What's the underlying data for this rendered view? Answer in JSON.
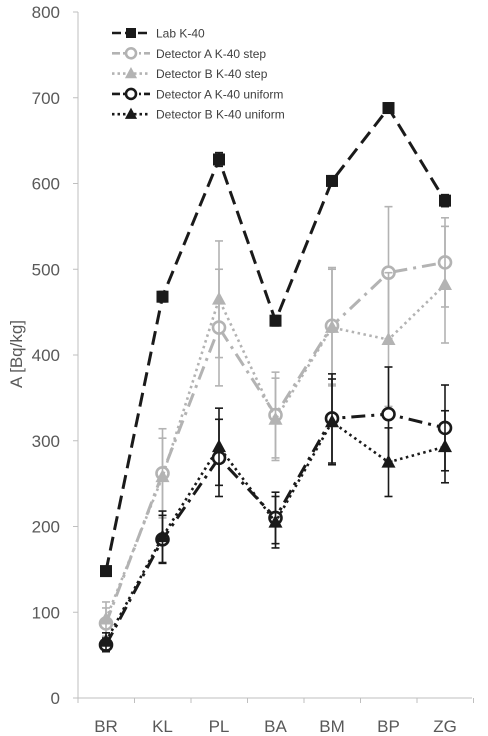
{
  "chart_data": {
    "type": "line",
    "title": "",
    "xlabel": "",
    "ylabel": "A  [Bq/kg]",
    "ylim": [
      0,
      800
    ],
    "yticks": [
      0,
      100,
      200,
      300,
      400,
      500,
      600,
      700,
      800
    ],
    "grid": false,
    "legend_position": "top-left",
    "categories": [
      "BR",
      "KL",
      "PL",
      "BA",
      "BM",
      "BP",
      "ZG"
    ],
    "series": [
      {
        "name": "Lab K-40",
        "values": [
          148,
          468,
          628,
          440,
          603,
          688,
          580
        ],
        "errors": [
          5,
          6,
          8,
          6,
          6,
          6,
          7
        ],
        "color": "#1a1a1a",
        "marker": "square",
        "line": "dash"
      },
      {
        "name": "Detector A K-40 step",
        "values": [
          87,
          262,
          432,
          330,
          434,
          496,
          508
        ],
        "errors": [
          18,
          52,
          68,
          50,
          68,
          77,
          52
        ],
        "color": "#b3b3b3",
        "marker": "circle-open",
        "line": "dashdot"
      },
      {
        "name": "Detector B K-40 step",
        "values": [
          92,
          258,
          465,
          325,
          432,
          418,
          482
        ],
        "errors": [
          20,
          45,
          68,
          48,
          68,
          78,
          68
        ],
        "color": "#b3b3b3",
        "marker": "triangle",
        "line": "dot"
      },
      {
        "name": "Detector A K-40 uniform",
        "values": [
          62,
          185,
          280,
          210,
          326,
          331,
          315
        ],
        "errors": [
          8,
          28,
          45,
          30,
          52,
          55,
          50
        ],
        "color": "#1a1a1a",
        "marker": "circle-open",
        "line": "dashdot"
      },
      {
        "name": "Detector B K-40 uniform",
        "values": [
          66,
          188,
          293,
          205,
          322,
          275,
          293
        ],
        "errors": [
          10,
          30,
          45,
          30,
          50,
          40,
          42
        ],
        "color": "#1a1a1a",
        "marker": "triangle",
        "line": "dot"
      }
    ]
  }
}
